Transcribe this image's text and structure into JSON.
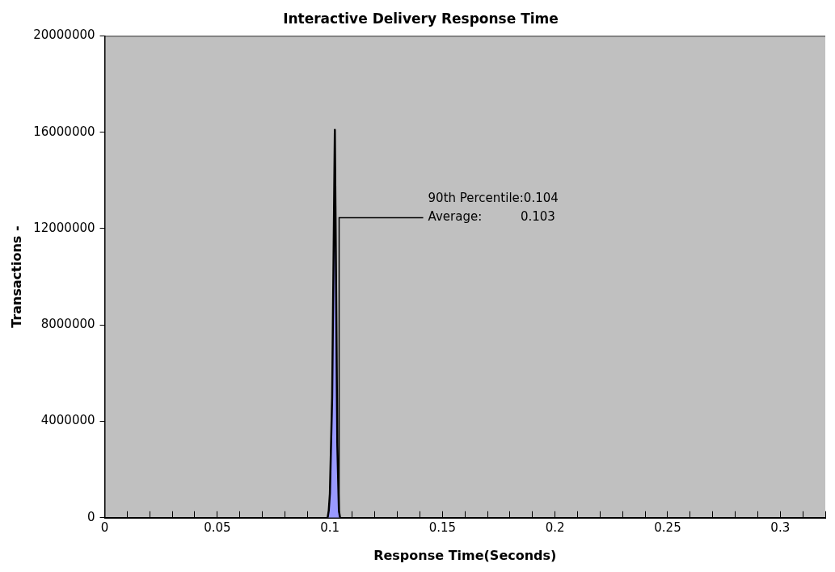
{
  "chart_data": {
    "type": "area",
    "title": "Interactive Delivery Response Time",
    "xlabel": "Response Time(Seconds)",
    "ylabel": "Transactions -",
    "series": [
      {
        "color": "#9999ff",
        "x": [
          0.099,
          0.0995,
          0.1,
          0.101,
          0.1022,
          0.1033,
          0.104,
          0.1045
        ],
        "values": [
          0,
          300000,
          1000000,
          5000000,
          16100000,
          3000000,
          300000,
          0
        ]
      }
    ],
    "xlim": [
      0,
      0.32
    ],
    "ylim": [
      0,
      20000000
    ],
    "xticks": [
      0,
      {
        "value": 0.01,
        "label": null
      },
      {
        "value": 0.02,
        "label": null
      },
      {
        "value": 0.03,
        "label": null
      },
      {
        "value": 0.04,
        "label": null
      },
      0.05,
      {
        "value": 0.06,
        "label": null
      },
      {
        "value": 0.07,
        "label": null
      },
      {
        "value": 0.08,
        "label": null
      },
      {
        "value": 0.09,
        "label": null
      },
      0.1,
      {
        "value": 0.11,
        "label": null
      },
      {
        "value": 0.12,
        "label": null
      },
      {
        "value": 0.13,
        "label": null
      },
      {
        "value": 0.14,
        "label": null
      },
      0.15,
      {
        "value": 0.16,
        "label": null
      },
      {
        "value": 0.17,
        "label": null
      },
      {
        "value": 0.18,
        "label": null
      },
      {
        "value": 0.19,
        "label": null
      },
      0.2,
      {
        "value": 0.21,
        "label": null
      },
      {
        "value": 0.22,
        "label": null
      },
      {
        "value": 0.23,
        "label": null
      },
      {
        "value": 0.24,
        "label": null
      },
      0.25,
      {
        "value": 0.26,
        "label": null
      },
      {
        "value": 0.27,
        "label": null
      },
      {
        "value": 0.28,
        "label": null
      },
      {
        "value": 0.29,
        "label": null
      },
      0.3,
      {
        "value": 0.31,
        "label": null
      },
      {
        "value": 0.32,
        "label": null
      }
    ],
    "yticks": [
      0,
      4000000,
      8000000,
      12000000,
      16000000,
      20000000
    ],
    "grid": false,
    "legend": false,
    "marker": "none",
    "line_style": "solid",
    "annotations": [
      "90th Percentile:0.104",
      "Average:          0.103"
    ]
  }
}
